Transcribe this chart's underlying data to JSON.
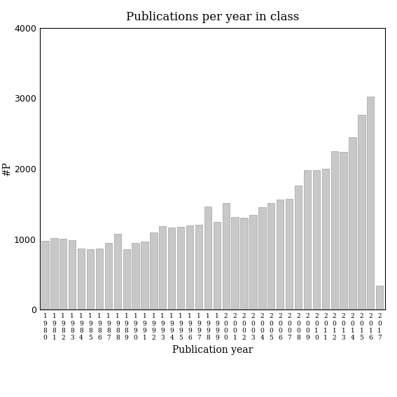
{
  "years": [
    "1980",
    "1981",
    "1982",
    "1983",
    "1984",
    "1985",
    "1986",
    "1987",
    "1988",
    "1989",
    "1990",
    "1991",
    "1992",
    "1993",
    "1994",
    "1995",
    "1996",
    "1997",
    "1998",
    "1999",
    "2000",
    "2001",
    "2002",
    "2003",
    "2004",
    "2005",
    "2006",
    "2007",
    "2008",
    "2009",
    "2010",
    "2011",
    "2012",
    "2013",
    "2014",
    "2015",
    "2016",
    "2017"
  ],
  "values": [
    975,
    1015,
    1005,
    990,
    870,
    860,
    870,
    950,
    1080,
    860,
    950,
    965,
    1100,
    1185,
    1165,
    1175,
    1195,
    1205,
    1465,
    1240,
    1515,
    1315,
    1300,
    1345,
    1455,
    1510,
    1560,
    1570,
    1760,
    1975,
    1975,
    2000,
    2250,
    2235,
    2450,
    2760,
    3020,
    340
  ],
  "title": "Publications per year in class",
  "xlabel": "Publication year",
  "ylabel": "#P",
  "ylim": [
    0,
    4000
  ],
  "yticks": [
    0,
    1000,
    2000,
    3000,
    4000
  ],
  "bar_color": "#c8c8c8",
  "bar_edgecolor": "#a0a0a0"
}
